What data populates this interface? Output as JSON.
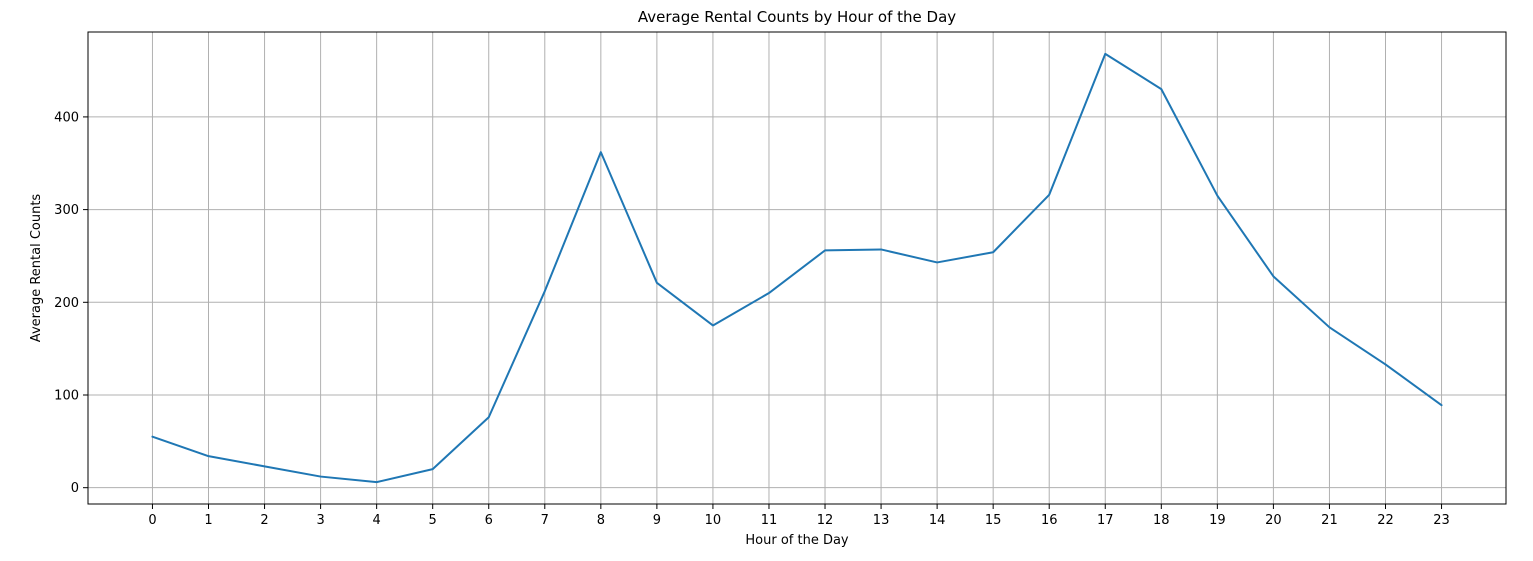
{
  "chart_data": {
    "type": "line",
    "title": "Average Rental Counts by Hour of the Day",
    "xlabel": "Hour of the Day",
    "ylabel": "Average Rental Counts",
    "x": [
      0,
      1,
      2,
      3,
      4,
      5,
      6,
      7,
      8,
      9,
      10,
      11,
      12,
      13,
      14,
      15,
      16,
      17,
      18,
      19,
      20,
      21,
      22,
      23
    ],
    "series": [
      {
        "name": "",
        "color": "#1f77b4",
        "values": [
          55,
          34,
          23,
          12,
          6,
          20,
          76,
          212,
          362,
          221,
          175,
          210,
          256,
          257,
          243,
          254,
          316,
          468,
          430,
          315,
          228,
          173,
          133,
          89
        ]
      }
    ],
    "xticks": [
      "0",
      "1",
      "2",
      "3",
      "4",
      "5",
      "6",
      "7",
      "8",
      "9",
      "10",
      "11",
      "12",
      "13",
      "14",
      "15",
      "16",
      "17",
      "18",
      "19",
      "20",
      "21",
      "22",
      "23"
    ],
    "yticks": [
      0,
      100,
      200,
      300,
      400
    ],
    "xlim": [
      -1.15,
      24.15
    ],
    "ylim": [
      -17.6,
      491.6
    ],
    "grid": true,
    "legend": "none"
  }
}
